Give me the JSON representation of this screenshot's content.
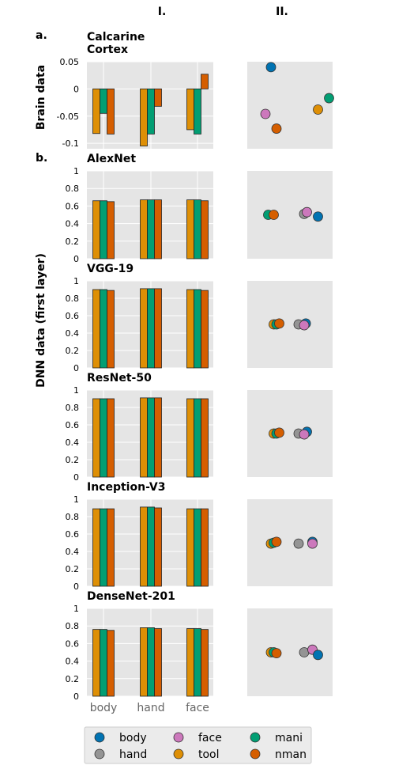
{
  "column_headers": [
    "I.",
    "II."
  ],
  "section_labels": [
    "a.",
    "b."
  ],
  "y_labels": {
    "brain": "Brain data",
    "dnn": "DNN data (first layer)"
  },
  "colors": {
    "body": "#0173b2",
    "hand": "#949494",
    "face": "#cc78bc",
    "tool": "#de8f05",
    "mani": "#029e73",
    "nman": "#d55e00",
    "panel_bg": "#e5e5e5",
    "grid": "#ffffff"
  },
  "legend": [
    "body",
    "face",
    "mani",
    "hand",
    "tool",
    "nman"
  ],
  "chart_data": [
    {
      "type": "bar",
      "title": "Calcarine\nCortex",
      "categories": [
        "body",
        "hand",
        "face"
      ],
      "series": [
        {
          "name": "tool",
          "values": [
            -0.082,
            -0.105,
            -0.075
          ]
        },
        {
          "name": "mani",
          "values": [
            -0.045,
            -0.083,
            -0.083
          ]
        },
        {
          "name": "nman",
          "values": [
            -0.083,
            -0.032,
            0.027
          ]
        }
      ],
      "ylim": [
        -0.11,
        0.05
      ],
      "yticks": [
        0.05,
        0,
        -0.05,
        -0.1
      ],
      "ytick_labels": [
        "0.05",
        "0",
        "-0.05",
        "-0.1"
      ],
      "grid": true,
      "scatter": [
        {
          "category": "body",
          "x": 0.0,
          "y": 0.04
        },
        {
          "category": "face",
          "x": -0.1,
          "y": -0.046
        },
        {
          "category": "nman",
          "x": 0.1,
          "y": -0.073
        },
        {
          "category": "tool",
          "x": 0.85,
          "y": -0.038
        },
        {
          "category": "mani",
          "x": 1.05,
          "y": -0.017
        }
      ],
      "scatter_ylim": [
        -0.11,
        0.05
      ]
    },
    {
      "type": "bar",
      "title": "AlexNet",
      "categories": [
        "body",
        "hand",
        "face"
      ],
      "series": [
        {
          "name": "tool",
          "values": [
            0.66,
            0.67,
            0.67
          ]
        },
        {
          "name": "mani",
          "values": [
            0.66,
            0.67,
            0.67
          ]
        },
        {
          "name": "nman",
          "values": [
            0.65,
            0.67,
            0.66
          ]
        }
      ],
      "ylim": [
        0,
        1
      ],
      "yticks": [
        0,
        0.2,
        0.4,
        0.6,
        0.8,
        1
      ],
      "ytick_labels": [
        "0",
        "0.2",
        "0.4",
        "0.6",
        "0.8",
        "1"
      ],
      "grid": true,
      "scatter": [
        {
          "category": "mani",
          "x": -0.05,
          "y": 0.5
        },
        {
          "category": "nman",
          "x": 0.05,
          "y": 0.5
        },
        {
          "category": "hand",
          "x": 0.6,
          "y": 0.51
        },
        {
          "category": "face",
          "x": 0.65,
          "y": 0.53
        },
        {
          "category": "body",
          "x": 0.85,
          "y": 0.48
        }
      ],
      "scatter_ylim": [
        0,
        1
      ]
    },
    {
      "type": "bar",
      "title": "VGG-19",
      "categories": [
        "body",
        "hand",
        "face"
      ],
      "series": [
        {
          "name": "tool",
          "values": [
            0.9,
            0.91,
            0.9
          ]
        },
        {
          "name": "mani",
          "values": [
            0.9,
            0.91,
            0.9
          ]
        },
        {
          "name": "nman",
          "values": [
            0.89,
            0.91,
            0.89
          ]
        }
      ],
      "ylim": [
        0,
        1
      ],
      "yticks": [
        0,
        0.2,
        0.4,
        0.6,
        0.8,
        1
      ],
      "ytick_labels": [
        "0",
        "0.2",
        "0.4",
        "0.6",
        "0.8",
        "1"
      ],
      "grid": true,
      "scatter": [
        {
          "category": "tool",
          "x": 0.05,
          "y": 0.5
        },
        {
          "category": "mani",
          "x": 0.1,
          "y": 0.5
        },
        {
          "category": "nman",
          "x": 0.15,
          "y": 0.51
        },
        {
          "category": "hand",
          "x": 0.5,
          "y": 0.5
        },
        {
          "category": "body",
          "x": 0.63,
          "y": 0.51
        },
        {
          "category": "face",
          "x": 0.6,
          "y": 0.49
        }
      ],
      "scatter_ylim": [
        0,
        1
      ]
    },
    {
      "type": "bar",
      "title": "ResNet-50",
      "categories": [
        "body",
        "hand",
        "face"
      ],
      "series": [
        {
          "name": "tool",
          "values": [
            0.9,
            0.91,
            0.9
          ]
        },
        {
          "name": "mani",
          "values": [
            0.9,
            0.91,
            0.9
          ]
        },
        {
          "name": "nman",
          "values": [
            0.9,
            0.91,
            0.9
          ]
        }
      ],
      "ylim": [
        0,
        1
      ],
      "yticks": [
        0,
        0.2,
        0.4,
        0.6,
        0.8,
        1
      ],
      "ytick_labels": [
        "0",
        "0.2",
        "0.4",
        "0.6",
        "0.8",
        "1"
      ],
      "grid": true,
      "scatter": [
        {
          "category": "tool",
          "x": 0.05,
          "y": 0.5
        },
        {
          "category": "mani",
          "x": 0.1,
          "y": 0.5
        },
        {
          "category": "nman",
          "x": 0.15,
          "y": 0.51
        },
        {
          "category": "hand",
          "x": 0.5,
          "y": 0.5
        },
        {
          "category": "body",
          "x": 0.65,
          "y": 0.52
        },
        {
          "category": "face",
          "x": 0.6,
          "y": 0.49
        }
      ],
      "scatter_ylim": [
        0,
        1
      ]
    },
    {
      "type": "bar",
      "title": "Inception-V3",
      "categories": [
        "body",
        "hand",
        "face"
      ],
      "series": [
        {
          "name": "tool",
          "values": [
            0.89,
            0.91,
            0.89
          ]
        },
        {
          "name": "mani",
          "values": [
            0.89,
            0.91,
            0.89
          ]
        },
        {
          "name": "nman",
          "values": [
            0.89,
            0.9,
            0.89
          ]
        }
      ],
      "ylim": [
        0,
        1
      ],
      "yticks": [
        0,
        0.2,
        0.4,
        0.6,
        0.8,
        1
      ],
      "ytick_labels": [
        "0",
        "0.2",
        "0.4",
        "0.6",
        "0.8",
        "1"
      ],
      "grid": true,
      "scatter": [
        {
          "category": "tool",
          "x": 0.0,
          "y": 0.49
        },
        {
          "category": "mani",
          "x": 0.05,
          "y": 0.5
        },
        {
          "category": "nman",
          "x": 0.1,
          "y": 0.51
        },
        {
          "category": "hand",
          "x": 0.5,
          "y": 0.49
        },
        {
          "category": "body",
          "x": 0.75,
          "y": 0.51
        },
        {
          "category": "face",
          "x": 0.75,
          "y": 0.49
        }
      ],
      "scatter_ylim": [
        0,
        1
      ]
    },
    {
      "type": "bar",
      "title": "DenseNet-201",
      "categories": [
        "body",
        "hand",
        "face"
      ],
      "series": [
        {
          "name": "tool",
          "values": [
            0.76,
            0.78,
            0.77
          ]
        },
        {
          "name": "mani",
          "values": [
            0.76,
            0.78,
            0.77
          ]
        },
        {
          "name": "nman",
          "values": [
            0.75,
            0.77,
            0.76
          ]
        }
      ],
      "ylim": [
        0,
        1
      ],
      "yticks": [
        0,
        0.2,
        0.4,
        0.6,
        0.8,
        1
      ],
      "ytick_labels": [
        "0",
        "0.2",
        "0.4",
        "0.6",
        "0.8",
        "1"
      ],
      "grid": true,
      "scatter": [
        {
          "category": "tool",
          "x": 0.0,
          "y": 0.5
        },
        {
          "category": "mani",
          "x": 0.05,
          "y": 0.5
        },
        {
          "category": "nman",
          "x": 0.1,
          "y": 0.49
        },
        {
          "category": "hand",
          "x": 0.6,
          "y": 0.5
        },
        {
          "category": "face",
          "x": 0.75,
          "y": 0.53
        },
        {
          "category": "body",
          "x": 0.85,
          "y": 0.47
        }
      ],
      "scatter_ylim": [
        0,
        1
      ]
    }
  ]
}
